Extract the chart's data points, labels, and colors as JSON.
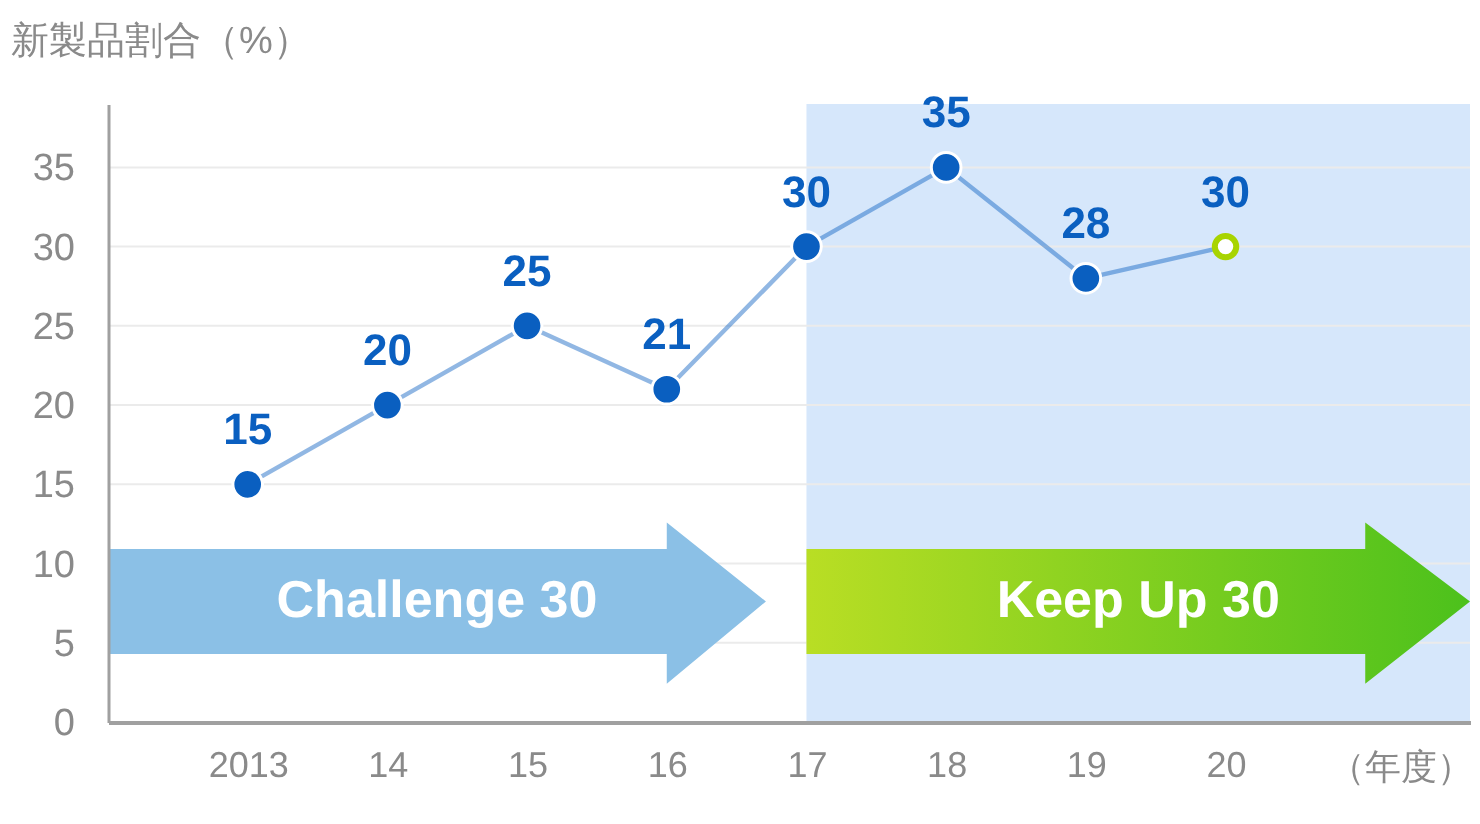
{
  "chart_data": {
    "type": "line",
    "ylabel": "新製品割合（%）",
    "xlabel": "（年度）",
    "categories": [
      "2013",
      "14",
      "15",
      "16",
      "17",
      "18",
      "19",
      "20"
    ],
    "series": [
      {
        "color": "#0a5fc0",
        "colors": [
          "#0a5fc0",
          "#0a5fc0",
          "#0a5fc0",
          "#0a5fc0",
          "#0a5fc0",
          "#0a5fc0",
          "#0a5fc0",
          "#a8d400"
        ],
        "values": [
          15,
          20,
          25,
          21,
          30,
          35,
          28,
          30
        ]
      }
    ],
    "ylim": [
      0,
      39
    ],
    "yticks": [
      0,
      5,
      10,
      15,
      20,
      25,
      30,
      35
    ],
    "grid": "y",
    "marker": "circle",
    "line_style": "solid",
    "data_labels": true,
    "bands": [
      {
        "axis": "x",
        "from": "17",
        "to": "20",
        "color": "#d6e7fb"
      }
    ],
    "annotations": [
      "Challenge 30",
      "Keep Up 30"
    ]
  }
}
